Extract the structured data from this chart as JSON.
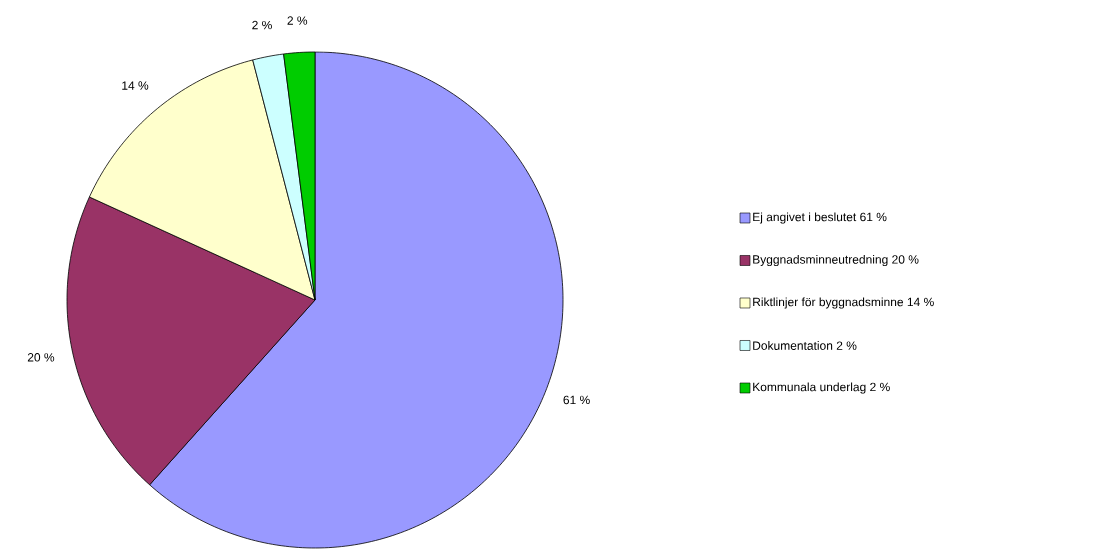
{
  "chart_data": {
    "type": "pie",
    "categories": [
      "Ej angivet i beslutet 61 %",
      "Byggnadsminneutredning 20 %",
      "Riktlinjer för byggnadsminne 14 %",
      "Dokumentation 2 %",
      "Kommunala underlag 2 %"
    ],
    "values": [
      61,
      20,
      14,
      2,
      2
    ],
    "colors": [
      "#9999ff",
      "#993366",
      "#ffffcc",
      "#ccffff",
      "#00cc00"
    ],
    "value_labels": [
      "61 %",
      "20 %",
      "14 %",
      "2 %",
      "2 %"
    ],
    "legend": "right"
  }
}
